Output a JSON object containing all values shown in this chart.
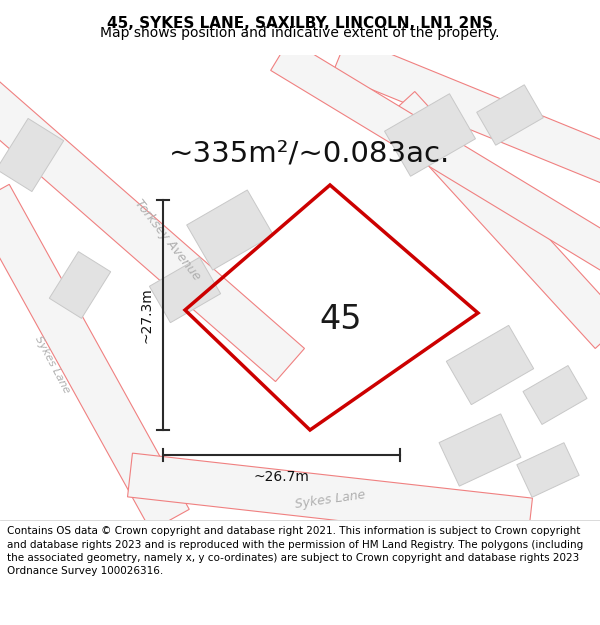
{
  "title_line1": "45, SYKES LANE, SAXILBY, LINCOLN, LN1 2NS",
  "title_line2": "Map shows position and indicative extent of the property.",
  "area_text": "~335m²/~0.083ac.",
  "label_number": "45",
  "dim_height": "~27.3m",
  "dim_width": "~26.7m",
  "footer_text": "Contains OS data © Crown copyright and database right 2021. This information is subject to Crown copyright and database rights 2023 and is reproduced with the permission of HM Land Registry. The polygons (including the associated geometry, namely x, y co-ordinates) are subject to Crown copyright and database rights 2023 Ordnance Survey 100026316.",
  "bg_color": "#f8f8f8",
  "plot_color": "#cc0000",
  "road_fill": "#f5f5f5",
  "road_edge": "#f08080",
  "building_fill": "#e2e2e2",
  "building_edge": "#c8c8c8",
  "dim_color": "#2a2a2a",
  "street_color": "#b0b0b0",
  "title_fontsize": 11,
  "subtitle_fontsize": 10,
  "area_fontsize": 21,
  "number_fontsize": 24,
  "dim_fontsize": 10,
  "street_fontsize": 9,
  "footer_fontsize": 7.5,
  "road_lw": 0.8,
  "building_lw": 0.7,
  "plot_lw": 2.5,
  "dim_lw": 1.5
}
